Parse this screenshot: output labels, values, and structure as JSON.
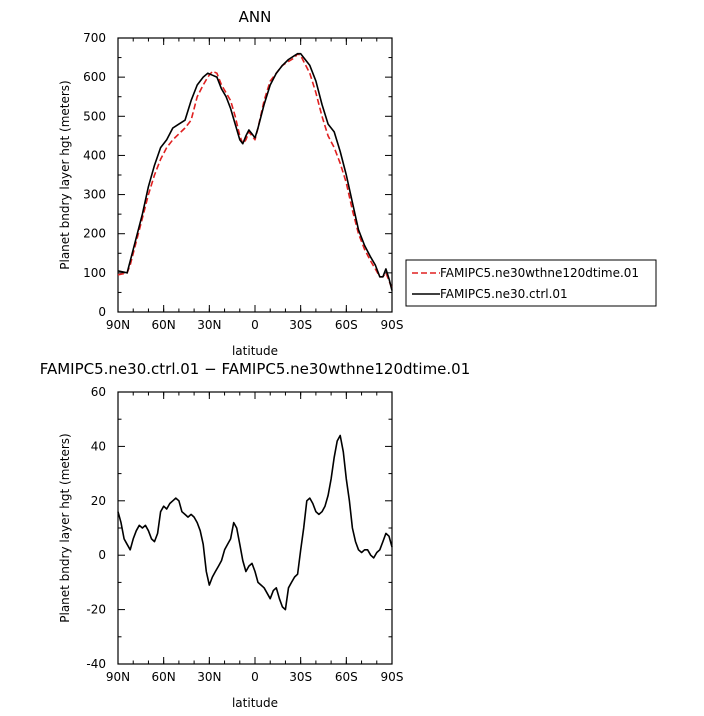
{
  "chart_data": [
    {
      "type": "line",
      "title": "ANN",
      "xlabel": "latitude",
      "ylabel": "Planet bndry layer hgt (meters)",
      "xlim": [
        90,
        -90
      ],
      "ylim": [
        0,
        700
      ],
      "x_tick_labels": [
        "90N",
        "60N",
        "30N",
        "0",
        "30S",
        "60S",
        "90S"
      ],
      "x_tick_values": [
        90,
        60,
        30,
        0,
        -30,
        -60,
        -90
      ],
      "y_tick_values": [
        0,
        100,
        200,
        300,
        400,
        500,
        600,
        700
      ],
      "legend_position": "right",
      "series": [
        {
          "name": "FAMIPC5.ne30wthne120dtime.01",
          "color": "#e02020",
          "dash": "dashed",
          "x": [
            90,
            86,
            84,
            82,
            78,
            74,
            70,
            66,
            62,
            58,
            54,
            50,
            46,
            42,
            38,
            34,
            31,
            28,
            25,
            22,
            19,
            16,
            13,
            10,
            8,
            6,
            4,
            2,
            0,
            -2,
            -6,
            -10,
            -14,
            -18,
            -22,
            -26,
            -28,
            -30,
            -32,
            -36,
            -40,
            -44,
            -48,
            -52,
            -56,
            -60,
            -64,
            -68,
            -72,
            -76,
            -79,
            -82,
            -84,
            -86,
            -88,
            -90
          ],
          "values": [
            95,
            98,
            100,
            120,
            180,
            240,
            300,
            350,
            390,
            420,
            440,
            455,
            470,
            490,
            550,
            580,
            600,
            615,
            610,
            580,
            560,
            540,
            500,
            450,
            430,
            440,
            460,
            450,
            440,
            470,
            540,
            590,
            610,
            630,
            640,
            650,
            660,
            655,
            640,
            610,
            560,
            500,
            450,
            420,
            380,
            330,
            260,
            200,
            160,
            130,
            110,
            90,
            90,
            100,
            80,
            60
          ]
        },
        {
          "name": "FAMIPC5.ne30.ctrl.01",
          "color": "#000000",
          "dash": "solid",
          "x": [
            90,
            86,
            84,
            82,
            78,
            74,
            70,
            66,
            62,
            58,
            54,
            50,
            46,
            42,
            38,
            34,
            31,
            28,
            25,
            22,
            19,
            16,
            13,
            10,
            8,
            6,
            4,
            2,
            0,
            -2,
            -6,
            -10,
            -14,
            -18,
            -22,
            -26,
            -28,
            -30,
            -32,
            -36,
            -40,
            -44,
            -48,
            -52,
            -56,
            -60,
            -64,
            -68,
            -72,
            -76,
            -79,
            -82,
            -84,
            -86,
            -88,
            -90
          ],
          "values": [
            105,
            102,
            100,
            130,
            190,
            250,
            320,
            375,
            420,
            440,
            470,
            480,
            490,
            540,
            580,
            600,
            610,
            605,
            600,
            570,
            550,
            520,
            480,
            440,
            430,
            450,
            465,
            455,
            445,
            470,
            530,
            580,
            610,
            630,
            645,
            655,
            660,
            660,
            650,
            630,
            590,
            530,
            480,
            460,
            410,
            350,
            280,
            210,
            170,
            140,
            120,
            90,
            90,
            110,
            85,
            55
          ]
        }
      ]
    },
    {
      "type": "line",
      "title": "FAMIPC5.ne30.ctrl.01 − FAMIPC5.ne30wthne120dtime.01",
      "xlabel": "latitude",
      "ylabel": "Planet bndry layer hgt (meters)",
      "xlim": [
        90,
        -90
      ],
      "ylim": [
        -40,
        60
      ],
      "x_tick_labels": [
        "90N",
        "60N",
        "30N",
        "0",
        "30S",
        "60S",
        "90S"
      ],
      "x_tick_values": [
        90,
        60,
        30,
        0,
        -30,
        -60,
        -90
      ],
      "y_tick_values": [
        -40,
        -20,
        0,
        20,
        40,
        60
      ],
      "series": [
        {
          "color": "#000000",
          "x": [
            90,
            88,
            86,
            84,
            82,
            80,
            78,
            76,
            74,
            72,
            70,
            68,
            66,
            64,
            62,
            60,
            58,
            56,
            54,
            52,
            50,
            48,
            46,
            44,
            42,
            40,
            38,
            36,
            34,
            32,
            30,
            28,
            26,
            24,
            22,
            20,
            18,
            16,
            14,
            12,
            10,
            8,
            6,
            4,
            2,
            0,
            -2,
            -4,
            -6,
            -8,
            -10,
            -12,
            -14,
            -16,
            -18,
            -20,
            -22,
            -24,
            -26,
            -28,
            -30,
            -32,
            -34,
            -36,
            -38,
            -40,
            -42,
            -44,
            -46,
            -48,
            -50,
            -52,
            -54,
            -56,
            -58,
            -60,
            -62,
            -64,
            -66,
            -68,
            -70,
            -72,
            -74,
            -76,
            -78,
            -80,
            -82,
            -84,
            -86,
            -88,
            -90
          ],
          "values": [
            16,
            12,
            6,
            4,
            2,
            6,
            9,
            11,
            10,
            11,
            9,
            6,
            5,
            8,
            16,
            18,
            17,
            19,
            20,
            21,
            20,
            16,
            15,
            14,
            15,
            14,
            12,
            9,
            4,
            -6,
            -11,
            -8,
            -6,
            -4,
            -2,
            2,
            4,
            6,
            12,
            10,
            4,
            -2,
            -6,
            -4,
            -3,
            -6,
            -10,
            -11,
            -12,
            -14,
            -16,
            -13,
            -12,
            -16,
            -19,
            -20,
            -12,
            -10,
            -8,
            -7,
            2,
            10,
            20,
            21,
            19,
            16,
            15,
            16,
            18,
            22,
            28,
            36,
            42,
            44,
            38,
            28,
            20,
            10,
            5,
            2,
            1,
            2,
            2,
            0,
            -1,
            1,
            2,
            5,
            8,
            7,
            3
          ]
        }
      ]
    }
  ]
}
